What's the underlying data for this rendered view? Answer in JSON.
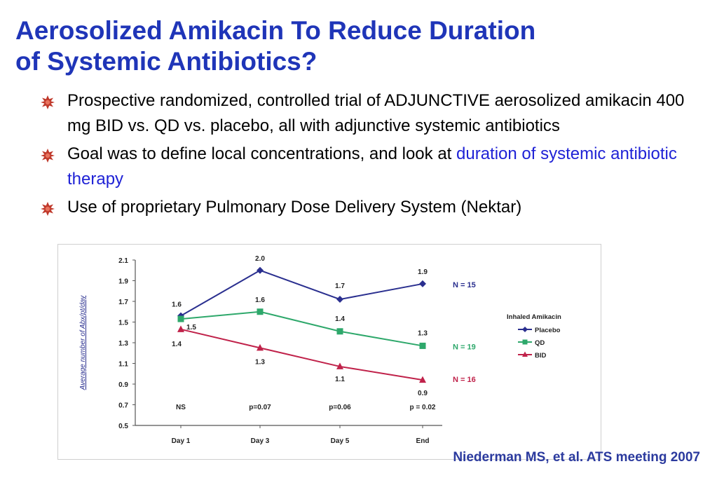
{
  "title": {
    "line1": "Aerosolized Amikacin To Reduce Duration",
    "line2": "of Systemic Antibiotics?"
  },
  "bullets": [
    {
      "text": "Prospective randomized, controlled trial of ADJUNCTIVE aerosolized amikacin 400 mg BID vs. QD vs. placebo, all with adjunctive systemic antibiotics"
    },
    {
      "text_before": "Goal was to define local concentrations, and look at ",
      "highlight": "duration of systemic antibiotic therapy"
    },
    {
      "text": "Use of proprietary Pulmonary Dose Delivery System (Nektar)"
    }
  ],
  "colors": {
    "title": "#1f35b8",
    "highlight": "#1f22d6",
    "bullet_icon": "#c0392b",
    "placebo": "#2a2f8f",
    "qd": "#2ea86b",
    "bid": "#c0224a"
  },
  "chart_data": {
    "type": "line",
    "ylabel": "Average number of Abx/pt/day",
    "ylim": [
      0.5,
      2.1
    ],
    "yticks": [
      "2.1",
      "1.9",
      "1.7",
      "1.5",
      "1.3",
      "1.1",
      "0.9",
      "0.7",
      "0.5"
    ],
    "categories": [
      "Day 1",
      "Day 3",
      "Day 5",
      "End"
    ],
    "series": [
      {
        "name": "Placebo",
        "values": [
          1.56,
          2.0,
          1.72,
          1.87
        ],
        "labels": [
          "1.6",
          "2.0",
          "1.7",
          "1.9"
        ],
        "n_label": "N = 15",
        "marker": "diamond",
        "color": "#2a2f8f"
      },
      {
        "name": "QD",
        "values": [
          1.53,
          1.6,
          1.41,
          1.27
        ],
        "labels": [
          "1.5",
          "1.6",
          "1.4",
          "1.3"
        ],
        "n_label": "N = 19",
        "marker": "square",
        "color": "#2ea86b"
      },
      {
        "name": "BID",
        "values": [
          1.43,
          1.25,
          1.07,
          0.94
        ],
        "labels": [
          "1.4",
          "1.3",
          "1.1",
          "0.9"
        ],
        "n_label": "N = 16",
        "marker": "triangle",
        "color": "#c0224a"
      }
    ],
    "pvalues": [
      "NS",
      "p=0.07",
      "p=0.06",
      "p = 0.02"
    ],
    "legend_title": "Inhaled Amikacin",
    "legend_position": "right"
  },
  "citation": "Niederman MS, et al. ATS meeting 2007"
}
